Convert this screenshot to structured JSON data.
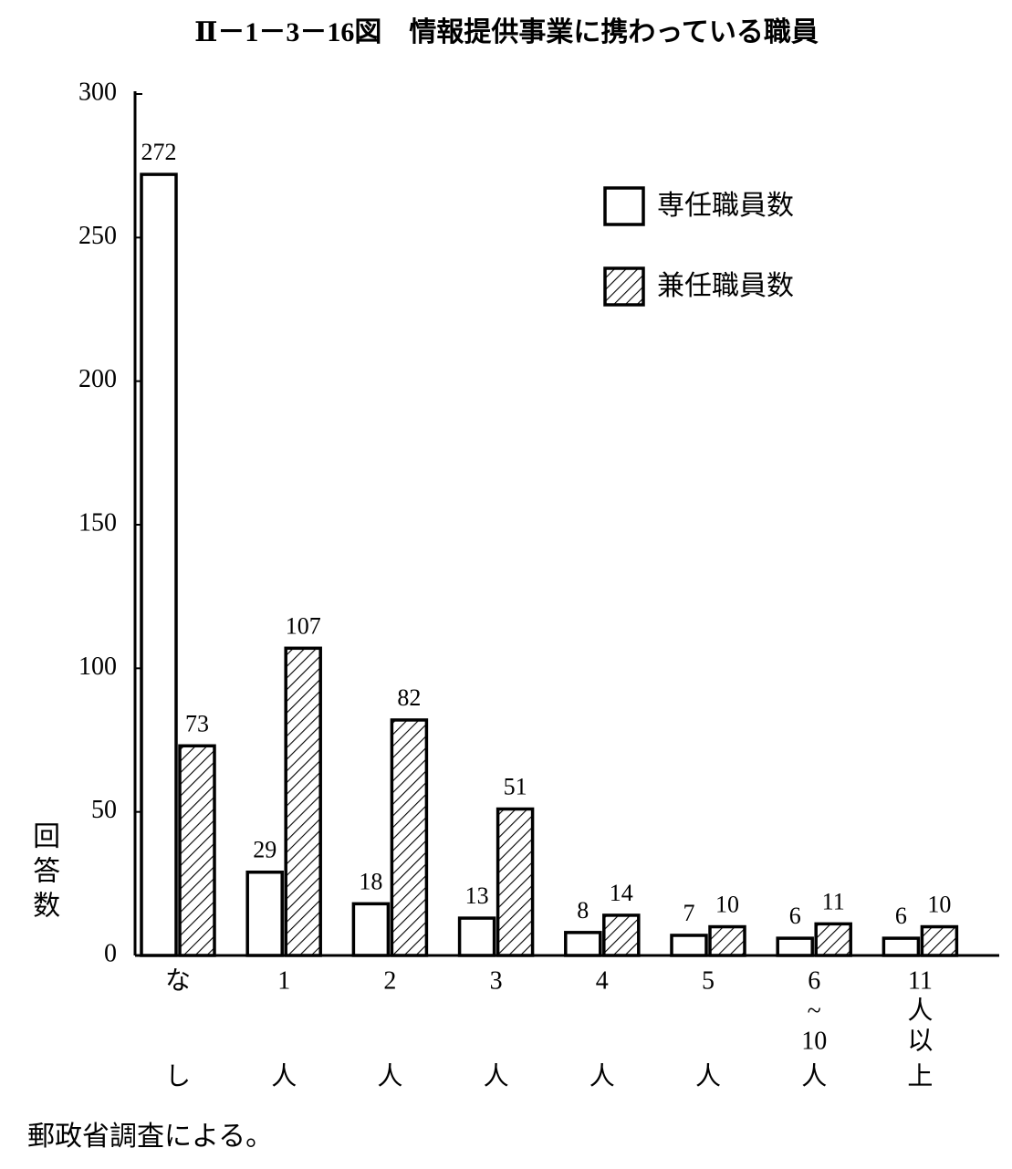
{
  "chart_data": {
    "type": "bar",
    "title": "Ⅱ－1－3－16図　情報提供事業に携わっている職員",
    "y_label": "回答数",
    "source": "郵政省調査による。",
    "categories": [
      [
        "な",
        "し"
      ],
      [
        "1",
        "人"
      ],
      [
        "2",
        "人"
      ],
      [
        "3",
        "人"
      ],
      [
        "4",
        "人"
      ],
      [
        "5",
        "人"
      ],
      [
        "6",
        "~",
        "10",
        "人"
      ],
      [
        "11",
        "人",
        "以",
        "上"
      ]
    ],
    "series": [
      {
        "name": "専任職員数",
        "color": "#ffffff",
        "hatch": false,
        "values": [
          272,
          29,
          18,
          13,
          8,
          7,
          6,
          6
        ]
      },
      {
        "name": "兼任職員数",
        "color": "#ffffff",
        "hatch": true,
        "values": [
          73,
          107,
          82,
          51,
          14,
          10,
          11,
          10
        ]
      }
    ],
    "ylim": [
      0,
      300
    ],
    "yticks": [
      0,
      50,
      100,
      150,
      200,
      250,
      300
    ],
    "grid": false,
    "legend": "upper right",
    "data_labels": true
  }
}
